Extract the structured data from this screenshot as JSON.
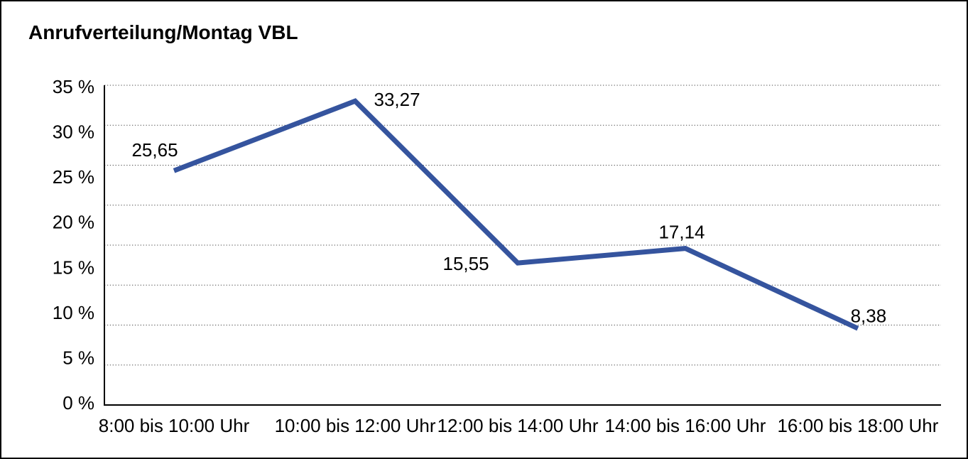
{
  "page": {
    "title": "Anrufverteilung/Montag VBL"
  },
  "chart_data": {
    "type": "line",
    "title": "Anrufverteilung/Montag VBL",
    "categories": [
      "8:00 bis 10:00 Uhr",
      "10:00 bis 12:00 Uhr",
      "12:00 bis 14:00 Uhr",
      "14:00 bis 16:00 Uhr",
      "16:00 bis 18:00 Uhr"
    ],
    "values": [
      25.65,
      33.27,
      15.55,
      17.14,
      8.38
    ],
    "point_labels": [
      "25,65",
      "33,27",
      "15,55",
      "17,14",
      "8,38"
    ],
    "y_ticks": [
      "35 %",
      "30 %",
      "25 %",
      "20 %",
      "15 %",
      "10 %",
      "5 %",
      "0 %"
    ],
    "ylim": [
      0,
      35
    ],
    "y_tick_step": 5,
    "xlabel": "",
    "ylabel": "",
    "legend": "none",
    "grid": "horizontal-dotted",
    "line_color": "#35549E",
    "axis_color": "#000000",
    "grid_color": "#4d4d4d",
    "text_color": "#000000",
    "background": "#FFFFFF"
  }
}
